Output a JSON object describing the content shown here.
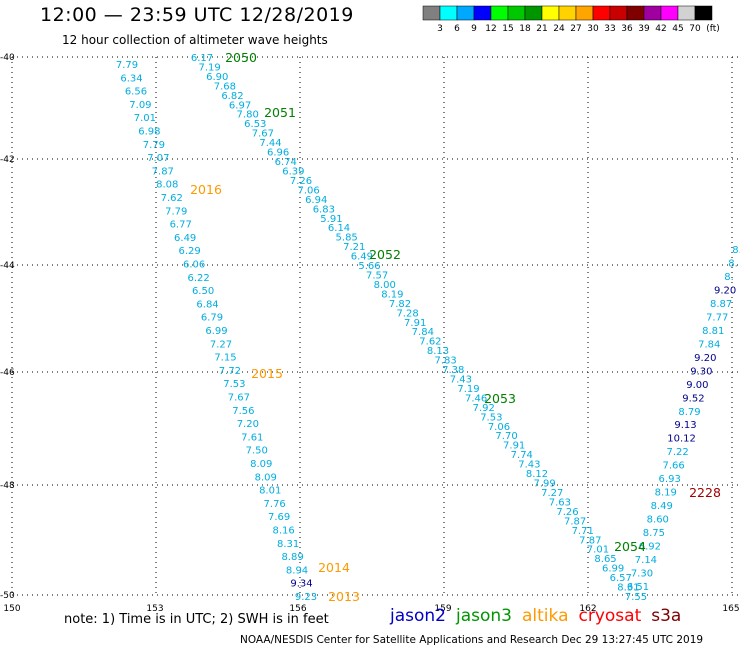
{
  "header": {
    "title": "12:00 — 23:59 UTC 12/28/2019",
    "subtitle": "12 hour collection of altimeter wave heights"
  },
  "legend": {
    "unit": "(ft)",
    "swatches": [
      {
        "color": "#808080",
        "label": "3"
      },
      {
        "color": "#00ffff",
        "label": "6"
      },
      {
        "color": "#00a8ff",
        "label": "9"
      },
      {
        "color": "#0000ff",
        "label": "12"
      },
      {
        "color": "#00ff00",
        "label": "15"
      },
      {
        "color": "#00c800",
        "label": "18"
      },
      {
        "color": "#009600",
        "label": "21"
      },
      {
        "color": "#ffff00",
        "label": "24"
      },
      {
        "color": "#ffd200",
        "label": "27"
      },
      {
        "color": "#ffa500",
        "label": "30"
      },
      {
        "color": "#ff0000",
        "label": "33"
      },
      {
        "color": "#c80000",
        "label": "36"
      },
      {
        "color": "#800000",
        "label": "39"
      },
      {
        "color": "#a000a0",
        "label": "42"
      },
      {
        "color": "#ff00ff",
        "label": "45"
      },
      {
        "color": "#d2d2d2",
        "label": "70"
      },
      {
        "color": "#000000",
        "label": ""
      }
    ]
  },
  "map": {
    "lon_ticks": [
      "150",
      "153",
      "156",
      "159",
      "162",
      "165"
    ],
    "lat_ticks": [
      "-40",
      "-42",
      "-44",
      "-46",
      "-48",
      "-50"
    ]
  },
  "colors": {
    "cyan": "#00aee0",
    "blue": "#00008b",
    "green": "#008000",
    "orange": "#ff9900",
    "darkred": "#a00000"
  },
  "tracks": {
    "time_labels": [
      {
        "text": "2050",
        "color": "green"
      },
      {
        "text": "2051",
        "color": "green"
      },
      {
        "text": "2016",
        "color": "orange"
      },
      {
        "text": "2052",
        "color": "green"
      },
      {
        "text": "2015",
        "color": "orange"
      },
      {
        "text": "2053",
        "color": "green"
      },
      {
        "text": "2228",
        "color": "darkred"
      },
      {
        "text": "2054",
        "color": "green"
      },
      {
        "text": "2014",
        "color": "orange"
      },
      {
        "text": "2013",
        "color": "orange"
      }
    ],
    "track_a": [
      "7.79",
      "6.34",
      "6.56",
      "7.09",
      "7.01",
      "6.98",
      "7.79",
      "7.07",
      "7.87",
      "8.08",
      "7.62",
      "7.79",
      "6.77",
      "6.49",
      "6.29",
      "6.06",
      "6.22",
      "6.50",
      "6.84",
      "6.79",
      "6.99",
      "7.27",
      "7.15",
      "7.72",
      "7.53",
      "7.67",
      "7.56",
      "7.20",
      "7.61",
      "7.50",
      "8.09",
      "8.09",
      "8.01",
      "7.76",
      "7.69",
      "8.16",
      "8.31",
      "8.89",
      "8.94",
      "9.34",
      "9.23"
    ],
    "track_b": [
      "6.17",
      "7.19",
      "6.90",
      "7.68",
      "6.82",
      "6.97",
      "7.80",
      "6.53",
      "7.67",
      "7.44",
      "6.96",
      "6.74",
      "6.39",
      "7.26",
      "7.06",
      "6.94",
      "6.83",
      "5.91",
      "6.14",
      "5.85",
      "7.21",
      "6.49",
      "5.66",
      "7.57",
      "8.00",
      "8.19",
      "7.82",
      "7.28",
      "7.91",
      "7.84",
      "7.62",
      "8.13",
      "7.83",
      "7.38",
      "7.43",
      "7.19",
      "7.46",
      "7.92",
      "7.53",
      "7.06",
      "7.70",
      "7.91",
      "7.74",
      "7.43",
      "8.12",
      "7.99",
      "7.27",
      "7.63",
      "7.26",
      "7.87",
      "7.71",
      "7.87",
      "7.01",
      "8.65",
      "6.99",
      "6.57",
      "8.31",
      "7.55"
    ],
    "track_c": [
      "8.",
      "8.",
      "8.",
      "9.20",
      "8.87",
      "7.77",
      "8.81",
      "7.84",
      "9.20",
      "9.30",
      "9.00",
      "9.52",
      "8.79",
      "9.13",
      "10.12",
      "7.22",
      "7.66",
      "6.93",
      "8.19",
      "8.49",
      "8.60",
      "8.75",
      "6.92",
      "7.14",
      "7.30",
      "6.51"
    ]
  },
  "footer": {
    "note": "note: 1) Time is in UTC; 2) SWH is in feet",
    "satellites": [
      {
        "name": "jason2",
        "color": "#0000c8"
      },
      {
        "name": "jason3",
        "color": "#009600"
      },
      {
        "name": "altika",
        "color": "#ff9900"
      },
      {
        "name": "cryosat",
        "color": "#ff0000"
      },
      {
        "name": "s3a",
        "color": "#800000"
      }
    ],
    "credit": "NOAA/NESDIS Center for Satellite Applications and Research    Dec 29 13:27:45 UTC 2019"
  }
}
